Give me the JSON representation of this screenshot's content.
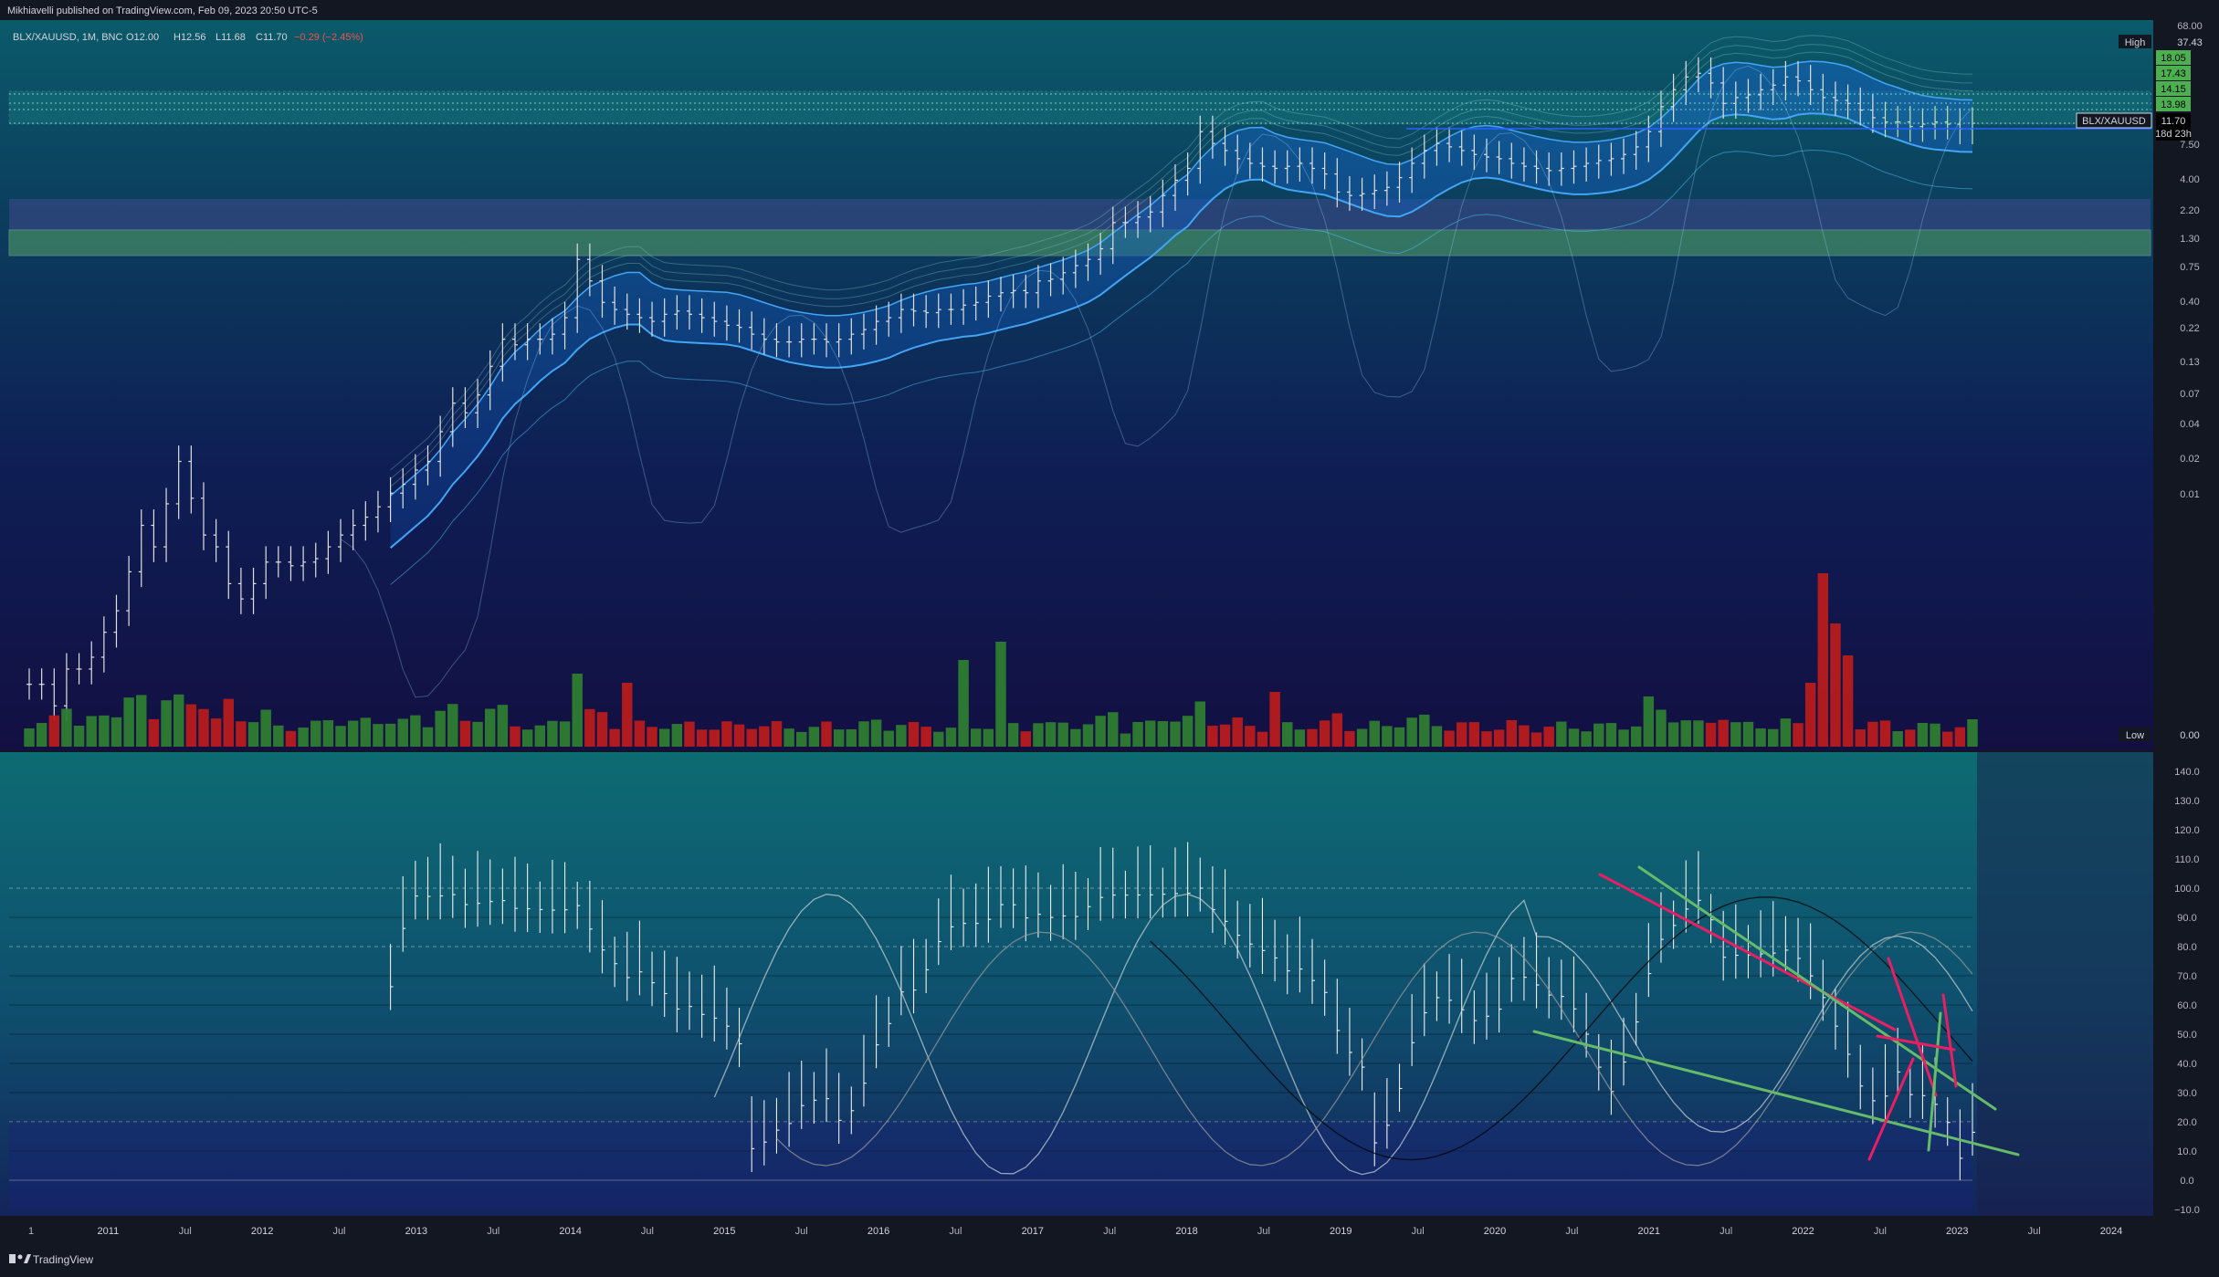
{
  "header": {
    "published": "Mikhiavelli published on TradingView.com, Feb 09, 2023 20:50 UTC-5",
    "legend_symbol": "BLX/XAUUSD, 1M, BNC",
    "legend_o": "O12.00",
    "legend_h": "H12.56",
    "legend_l": "L11.68",
    "legend_c": "C11.70",
    "legend_chg": "−0.29 (−2.45%)"
  },
  "footer": {
    "brand": "TradingView"
  },
  "colors": {
    "up": "#2e7d32",
    "down": "#b71c1c",
    "green_label": "#4caf50",
    "ribbon": "#1e88e5",
    "pink_line": "#e91e63",
    "green_line": "#66bb6a",
    "price_line": "#2962ff"
  },
  "price_axis": {
    "ticks": [
      "68.00",
      "37.43",
      "18.05",
      "17.43",
      "14.15",
      "13.98",
      "11.70",
      "7.50",
      "4.00",
      "2.20",
      "1.30",
      "0.75",
      "0.40",
      "0.22",
      "0.13",
      "0.07",
      "0.04",
      "0.02",
      "0.01",
      "0.00"
    ],
    "high_label": "High",
    "high_value": "37.43",
    "green_values": [
      "18.05",
      "17.43",
      "14.15",
      "13.98"
    ],
    "symbol_label": "BLX/XAUUSD",
    "last_value": "11.70",
    "countdown": "18d 23h",
    "low_label": "Low",
    "low_value": "0.00"
  },
  "osc_axis": {
    "ticks": [
      "140.0",
      "130.0",
      "120.0",
      "110.0",
      "100.0",
      "90.0",
      "80.0",
      "70.0",
      "60.0",
      "50.0",
      "40.0",
      "30.0",
      "20.0",
      "10.0",
      "0.0",
      "−10.0"
    ]
  },
  "time_axis": {
    "labels": [
      "1",
      "2011",
      "Jul",
      "2012",
      "Jul",
      "2013",
      "Jul",
      "2014",
      "Jul",
      "2015",
      "Jul",
      "2016",
      "Jul",
      "2017",
      "Jul",
      "2018",
      "Jul",
      "2019",
      "Jul",
      "2020",
      "Jul",
      "2021",
      "Jul",
      "2022",
      "Jul",
      "2023",
      "Jul",
      "2024"
    ]
  },
  "chart_data": {
    "type": "bar",
    "symbol": "BLX/XAUUSD",
    "interval": "1M",
    "exchange": "BNC",
    "y_scale": "log",
    "last_ohlc": {
      "open": 12.0,
      "high": 12.56,
      "low": 11.68,
      "close": 11.7,
      "change": -0.29,
      "change_pct": -2.45
    },
    "closes_approx": [
      0.0003,
      0.0003,
      0.0002,
      0.0004,
      0.0004,
      0.0005,
      0.0008,
      0.0012,
      0.0025,
      0.006,
      0.004,
      0.009,
      0.02,
      0.01,
      0.005,
      0.004,
      0.002,
      0.0015,
      0.002,
      0.003,
      0.003,
      0.0028,
      0.003,
      0.0032,
      0.004,
      0.005,
      0.006,
      0.007,
      0.0085,
      0.011,
      0.013,
      0.017,
      0.02,
      0.035,
      0.06,
      0.05,
      0.07,
      0.12,
      0.2,
      0.18,
      0.2,
      0.2,
      0.22,
      0.3,
      0.9,
      0.6,
      0.4,
      0.35,
      0.32,
      0.3,
      0.28,
      0.32,
      0.34,
      0.32,
      0.3,
      0.28,
      0.26,
      0.25,
      0.22,
      0.2,
      0.19,
      0.19,
      0.2,
      0.2,
      0.19,
      0.2,
      0.22,
      0.24,
      0.28,
      0.3,
      0.35,
      0.34,
      0.33,
      0.35,
      0.35,
      0.38,
      0.4,
      0.45,
      0.48,
      0.5,
      0.48,
      0.6,
      0.62,
      0.7,
      0.8,
      0.9,
      1.1,
      1.8,
      1.8,
      2.0,
      2.2,
      3.0,
      4.0,
      5.0,
      10,
      8,
      7,
      6,
      5.5,
      5.2,
      5.0,
      5.2,
      5.5,
      5.0,
      4.5,
      3.2,
      3.0,
      3.1,
      3.3,
      3.5,
      4.2,
      5.5,
      7.0,
      8.0,
      7.5,
      7.0,
      6.5,
      6.2,
      6.0,
      5.5,
      5.2,
      5.0,
      4.8,
      5.0,
      5.2,
      5.5,
      5.8,
      6.0,
      6.5,
      7.5,
      10,
      16,
      22,
      28,
      30,
      25,
      17,
      19,
      20,
      22,
      24,
      28,
      26,
      22,
      19,
      18,
      17,
      15,
      13,
      12,
      12,
      11,
      11.5,
      12,
      11.5,
      10.5,
      11.7
    ],
    "volume_units": "relative",
    "osc_range": [
      -10,
      140
    ]
  }
}
